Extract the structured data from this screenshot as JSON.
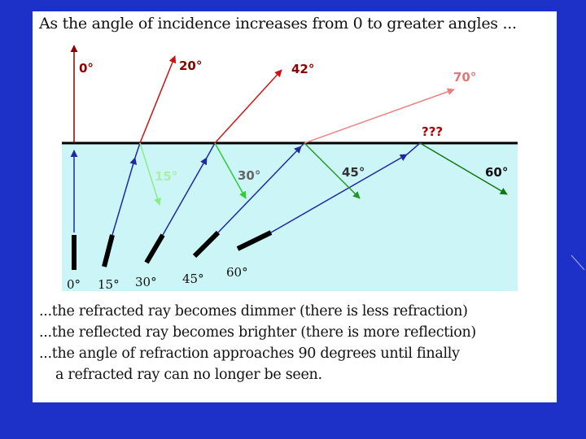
{
  "heading": "As the angle of incidence increases from 0 to greater angles ...",
  "colors": {
    "background": "#1d31c9",
    "panel": "#ffffff",
    "water": "#ccf5f8",
    "surface": "#000000",
    "incident_ray": "#1f2a9e",
    "reflected_0": "#8b0000",
    "reflected_20": "#d11010",
    "reflected_42": "#d41414",
    "reflected_70": "#ee8080",
    "refracted_15": "#88ee88",
    "refracted_30": "#33cc33",
    "refracted_45": "#229922",
    "refracted_60": "#117711"
  },
  "reflection_labels": [
    "0°",
    "20°",
    "42°",
    "70°"
  ],
  "question_label": "???",
  "refraction_labels": [
    "15°",
    "30°",
    "45°",
    "60°"
  ],
  "source_labels": [
    "0°",
    "15°",
    "30°",
    "45°",
    "60°"
  ],
  "caption": {
    "line1": "...the refracted ray becomes dimmer (there is less refraction)",
    "line2": "...the reflected ray becomes brighter (there is more reflection)",
    "line3": "...the angle of refraction approaches 90 degrees until finally",
    "line4": "a refracted ray can no longer be seen."
  }
}
